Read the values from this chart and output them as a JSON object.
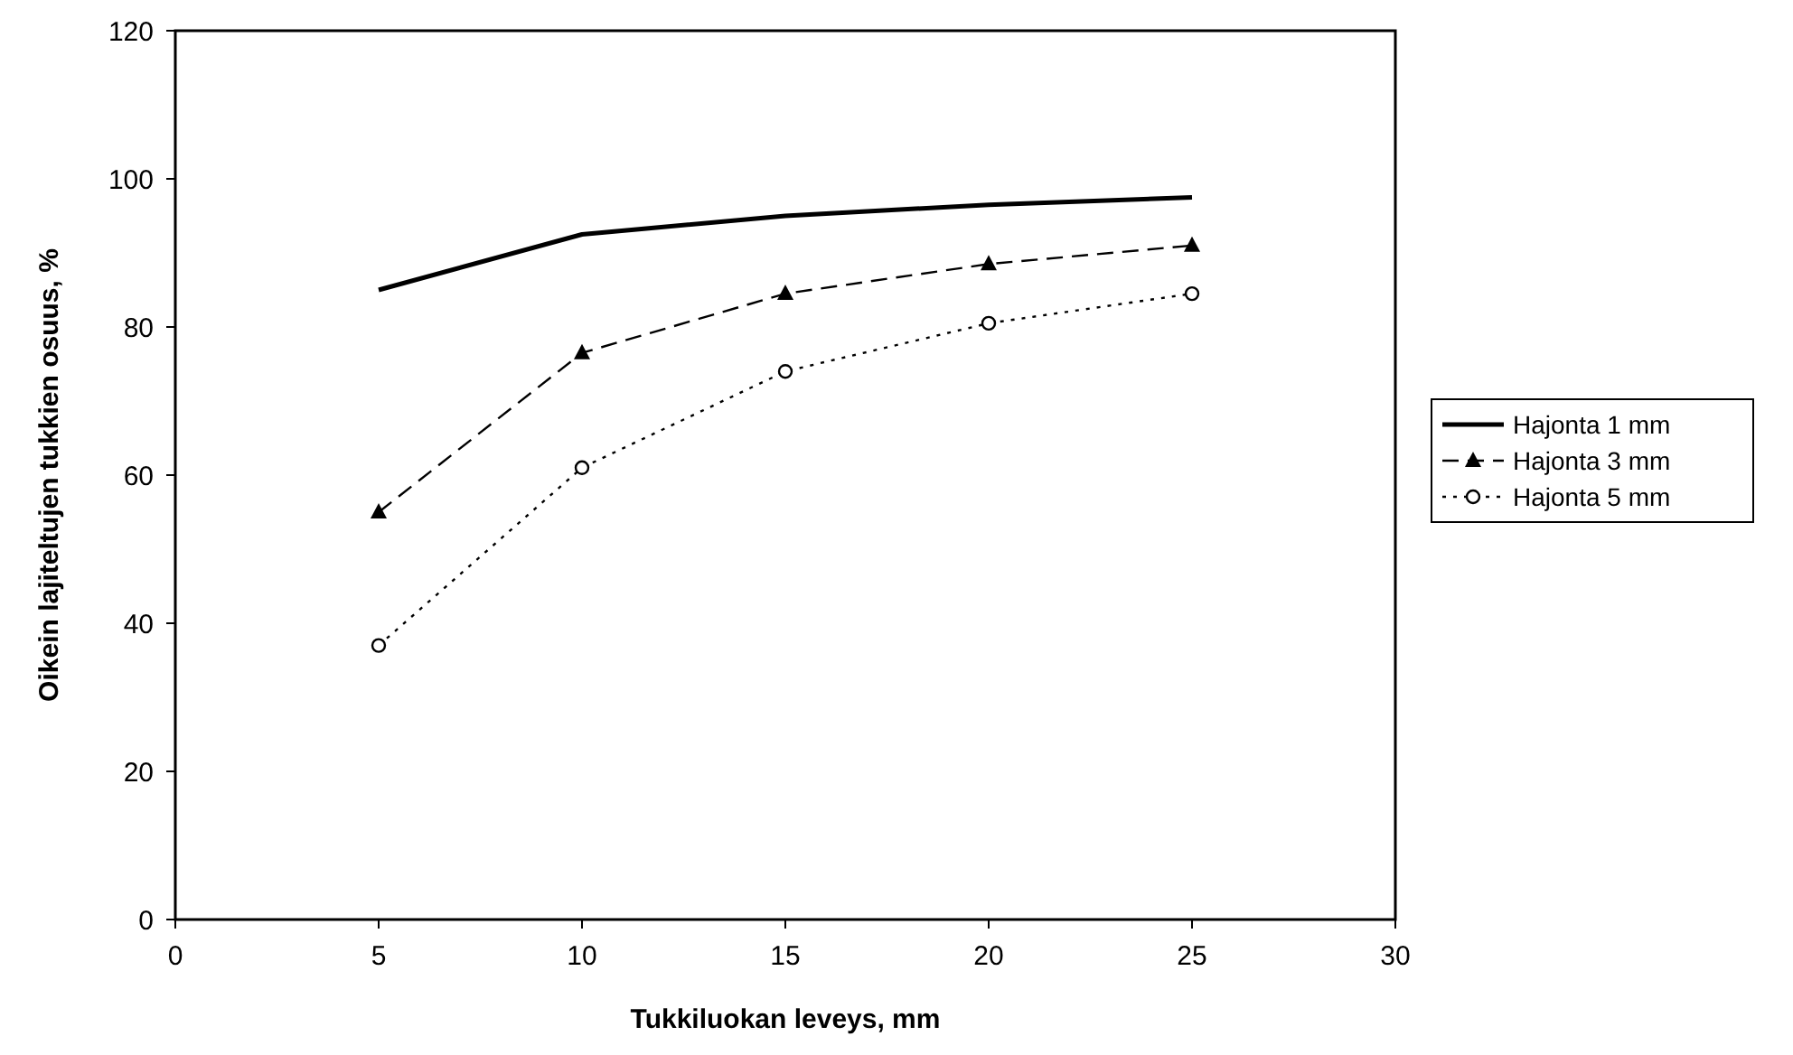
{
  "chart_data": {
    "type": "line",
    "xlabel": "Tukkiluokan leveys, mm",
    "ylabel": "Oikein lajiteltujen tukkien osuus, %",
    "x": [
      5,
      10,
      15,
      20,
      25
    ],
    "xlim": [
      0,
      30
    ],
    "xticks": [
      0,
      5,
      10,
      15,
      20,
      25,
      30
    ],
    "ylim": [
      0,
      120
    ],
    "yticks": [
      0,
      20,
      40,
      60,
      80,
      100,
      120
    ],
    "grid": false,
    "legend": "right",
    "series": [
      {
        "name": "Hajonta 1 mm",
        "color": "#000000",
        "values": [
          85,
          92.5,
          95,
          96.5,
          97.5
        ],
        "marker": "none",
        "line_style": "solid"
      },
      {
        "name": "Hajonta 3 mm",
        "color": "#000000",
        "values": [
          55,
          76.5,
          84.5,
          88.5,
          91
        ],
        "marker": "triangle",
        "line_style": "dashed"
      },
      {
        "name": "Hajonta 5 mm",
        "color": "#000000",
        "values": [
          37,
          61,
          74,
          80.5,
          84.5
        ],
        "marker": "circle",
        "line_style": "dotted"
      }
    ]
  }
}
